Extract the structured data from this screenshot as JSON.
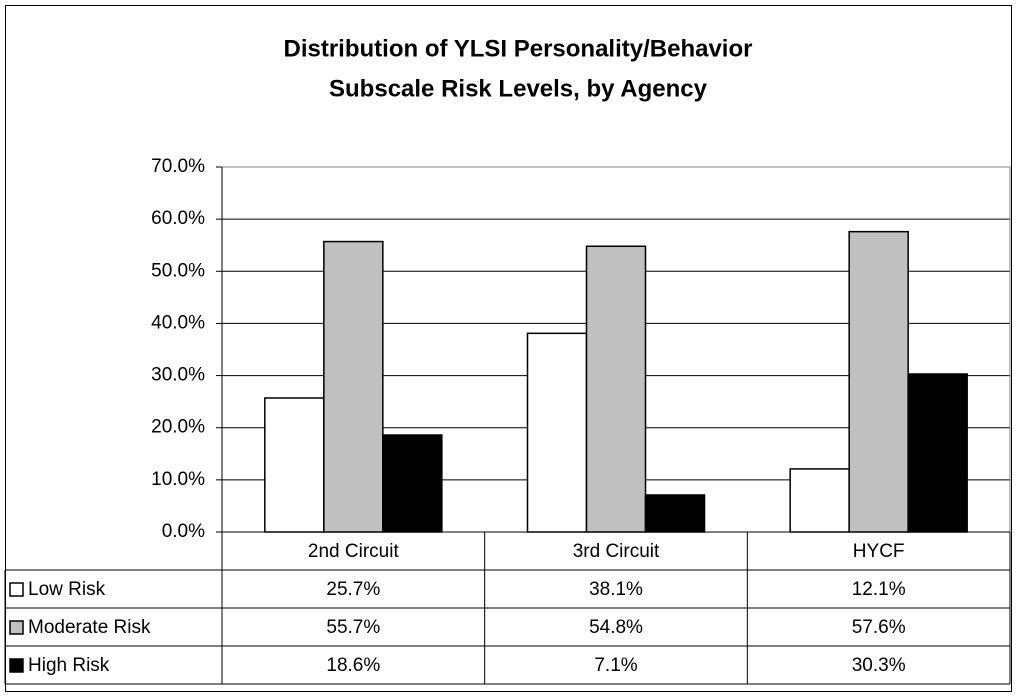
{
  "chart_data": {
    "type": "bar",
    "title": [
      "Distribution of YLSI Personality/Behavior",
      "Subscale Risk Levels, by Agency"
    ],
    "categories": [
      "2nd Circuit",
      "3rd Circuit",
      "HYCF"
    ],
    "series": [
      {
        "name": "Low Risk",
        "color": "#ffffff",
        "values": [
          25.7,
          38.1,
          12.1
        ],
        "value_labels": [
          "25.7%",
          "38.1%",
          "12.1%"
        ]
      },
      {
        "name": "Moderate Risk",
        "color": "#c0c0c0",
        "values": [
          55.7,
          54.8,
          57.6
        ],
        "value_labels": [
          "55.7%",
          "54.8%",
          "57.6%"
        ]
      },
      {
        "name": "High Risk",
        "color": "#000000",
        "values": [
          18.6,
          7.1,
          30.3
        ],
        "value_labels": [
          "18.6%",
          "7.1%",
          "30.3%"
        ]
      }
    ],
    "ylim": [
      0,
      70
    ],
    "yticks": [
      {
        "value": 0,
        "label": "0.0%"
      },
      {
        "value": 10,
        "label": "10.0%"
      },
      {
        "value": 20,
        "label": "20.0%"
      },
      {
        "value": 30,
        "label": "30.0%"
      },
      {
        "value": 40,
        "label": "40.0%"
      },
      {
        "value": 50,
        "label": "50.0%"
      },
      {
        "value": 60,
        "label": "60.0%"
      },
      {
        "value": 70,
        "label": "70.0%"
      }
    ],
    "grid": true
  }
}
